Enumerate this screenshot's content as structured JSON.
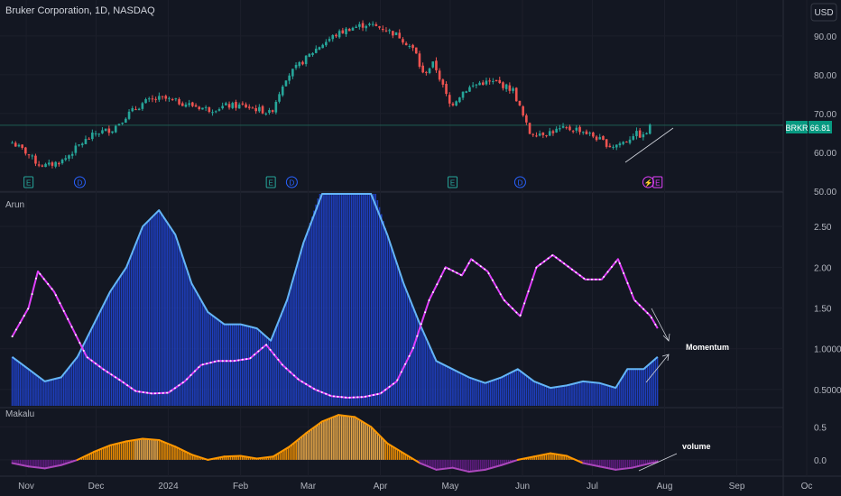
{
  "header": {
    "title": "Bruker Corporation, 1D, NASDAQ",
    "currency": "USD"
  },
  "price_label": {
    "symbol": "BRKR",
    "value": "66.81"
  },
  "colors": {
    "background": "#131722",
    "grid": "#1f2230",
    "up": "#26a69a",
    "down": "#ef5350",
    "arun_blue_line": "#64b5f6",
    "arun_blue_fill": "#1e3fbf",
    "arun_magenta": "#e040fb",
    "makalu_orange": "#ff9800",
    "makalu_purple": "#9c27b0",
    "text": "#b2b5be",
    "price_badge": "#089981"
  },
  "annotations": {
    "momentum": "Momentum",
    "volume": "volume"
  },
  "chart_data": [
    {
      "type": "candlestick",
      "title": "Bruker Corporation, 1D, NASDAQ",
      "y_ticks": [
        "90.00",
        "80.00",
        "70.00",
        "60.00",
        "50.00"
      ],
      "ylim": [
        50,
        96
      ],
      "x_ticks": [
        "Nov",
        "Dec",
        "2024",
        "Feb",
        "Mar",
        "Apr",
        "May",
        "Jun",
        "Jul",
        "Aug",
        "Sep",
        "Oc"
      ],
      "close_path": [
        [
          "2023-10-26",
          62.5
        ],
        [
          "2023-11-01",
          60
        ],
        [
          "2023-11-06",
          57
        ],
        [
          "2023-11-10",
          56.5
        ],
        [
          "2023-11-17",
          58
        ],
        [
          "2023-11-24",
          62
        ],
        [
          "2023-12-01",
          65
        ],
        [
          "2023-12-08",
          66
        ],
        [
          "2023-12-15",
          70
        ],
        [
          "2023-12-22",
          73
        ],
        [
          "2023-12-29",
          74
        ],
        [
          "2024-01-05",
          73
        ],
        [
          "2024-01-12",
          72
        ],
        [
          "2024-01-19",
          71
        ],
        [
          "2024-01-26",
          72
        ],
        [
          "2024-02-02",
          72
        ],
        [
          "2024-02-09",
          71
        ],
        [
          "2024-02-14",
          70
        ],
        [
          "2024-02-20",
          79
        ],
        [
          "2024-02-27",
          83
        ],
        [
          "2024-03-05",
          87
        ],
        [
          "2024-03-12",
          90
        ],
        [
          "2024-03-19",
          92
        ],
        [
          "2024-03-26",
          93
        ],
        [
          "2024-04-02",
          92
        ],
        [
          "2024-04-09",
          90
        ],
        [
          "2024-04-16",
          86
        ],
        [
          "2024-04-19",
          80
        ],
        [
          "2024-04-24",
          83
        ],
        [
          "2024-05-01",
          72
        ],
        [
          "2024-05-07",
          76
        ],
        [
          "2024-05-14",
          78
        ],
        [
          "2024-05-21",
          78
        ],
        [
          "2024-05-28",
          76
        ],
        [
          "2024-06-04",
          65
        ],
        [
          "2024-06-11",
          65
        ],
        [
          "2024-06-18",
          66
        ],
        [
          "2024-06-25",
          66
        ],
        [
          "2024-07-02",
          64
        ],
        [
          "2024-07-09",
          61.5
        ],
        [
          "2024-07-16",
          63
        ],
        [
          "2024-07-19",
          65
        ],
        [
          "2024-07-23",
          64
        ],
        [
          "2024-07-26",
          66.81
        ]
      ],
      "events": [
        {
          "date": "2023-11-02",
          "label": "E"
        },
        {
          "date": "2023-11-24",
          "label": "D"
        },
        {
          "date": "2024-02-14",
          "label": "E"
        },
        {
          "date": "2024-02-23",
          "label": "D"
        },
        {
          "date": "2024-05-02",
          "label": "E"
        },
        {
          "date": "2024-05-31",
          "label": "D"
        },
        {
          "date": "2024-07-25",
          "label": "⚡"
        },
        {
          "date": "2024-07-29",
          "label": "E"
        }
      ],
      "reference_line": 67
    },
    {
      "type": "line",
      "title": "Arun",
      "y_ticks": [
        "2.50",
        "2.00",
        "1.50",
        "1.0000",
        "0.5000"
      ],
      "ylim": [
        0.3,
        2.9
      ],
      "series": [
        {
          "color": "#64b5f6",
          "style": "line+histogram",
          "points": [
            [
              "2023-10-26",
              0.9
            ],
            [
              "2023-11-02",
              0.75
            ],
            [
              "2023-11-09",
              0.6
            ],
            [
              "2023-11-16",
              0.65
            ],
            [
              "2023-11-23",
              0.9
            ],
            [
              "2023-11-30",
              1.3
            ],
            [
              "2023-12-07",
              1.7
            ],
            [
              "2023-12-14",
              2.0
            ],
            [
              "2023-12-21",
              2.5
            ],
            [
              "2023-12-28",
              2.7
            ],
            [
              "2024-01-04",
              2.4
            ],
            [
              "2024-01-11",
              1.8
            ],
            [
              "2024-01-18",
              1.45
            ],
            [
              "2024-01-25",
              1.3
            ],
            [
              "2024-02-01",
              1.3
            ],
            [
              "2024-02-08",
              1.25
            ],
            [
              "2024-02-14",
              1.1
            ],
            [
              "2024-02-21",
              1.6
            ],
            [
              "2024-02-28",
              2.3
            ],
            [
              "2024-03-07",
              3.0
            ],
            [
              "2024-03-14",
              3.3
            ],
            [
              "2024-03-21",
              3.3
            ],
            [
              "2024-03-28",
              3.1
            ],
            [
              "2024-04-04",
              2.4
            ],
            [
              "2024-04-11",
              1.8
            ],
            [
              "2024-04-18",
              1.3
            ],
            [
              "2024-04-25",
              0.85
            ],
            [
              "2024-05-02",
              0.75
            ],
            [
              "2024-05-09",
              0.65
            ],
            [
              "2024-05-16",
              0.58
            ],
            [
              "2024-05-23",
              0.65
            ],
            [
              "2024-05-30",
              0.75
            ],
            [
              "2024-06-06",
              0.6
            ],
            [
              "2024-06-13",
              0.52
            ],
            [
              "2024-06-20",
              0.55
            ],
            [
              "2024-06-27",
              0.6
            ],
            [
              "2024-07-04",
              0.58
            ],
            [
              "2024-07-11",
              0.52
            ],
            [
              "2024-07-16",
              0.75
            ],
            [
              "2024-07-23",
              0.75
            ],
            [
              "2024-07-29",
              0.9
            ]
          ]
        },
        {
          "color": "#e040fb",
          "style": "line+dots",
          "points": [
            [
              "2023-10-26",
              1.15
            ],
            [
              "2023-11-02",
              1.5
            ],
            [
              "2023-11-06",
              1.95
            ],
            [
              "2023-11-13",
              1.7
            ],
            [
              "2023-11-20",
              1.3
            ],
            [
              "2023-11-27",
              0.9
            ],
            [
              "2023-12-04",
              0.75
            ],
            [
              "2023-12-11",
              0.62
            ],
            [
              "2023-12-18",
              0.48
            ],
            [
              "2023-12-25",
              0.45
            ],
            [
              "2024-01-01",
              0.46
            ],
            [
              "2024-01-08",
              0.6
            ],
            [
              "2024-01-15",
              0.8
            ],
            [
              "2024-01-22",
              0.85
            ],
            [
              "2024-01-29",
              0.85
            ],
            [
              "2024-02-05",
              0.88
            ],
            [
              "2024-02-12",
              1.05
            ],
            [
              "2024-02-19",
              0.8
            ],
            [
              "2024-02-26",
              0.62
            ],
            [
              "2024-03-04",
              0.5
            ],
            [
              "2024-03-11",
              0.42
            ],
            [
              "2024-03-18",
              0.4
            ],
            [
              "2024-03-25",
              0.41
            ],
            [
              "2024-04-01",
              0.45
            ],
            [
              "2024-04-08",
              0.6
            ],
            [
              "2024-04-15",
              1.0
            ],
            [
              "2024-04-22",
              1.6
            ],
            [
              "2024-04-29",
              2.0
            ],
            [
              "2024-05-06",
              1.9
            ],
            [
              "2024-05-10",
              2.1
            ],
            [
              "2024-05-17",
              1.95
            ],
            [
              "2024-05-24",
              1.6
            ],
            [
              "2024-05-31",
              1.4
            ],
            [
              "2024-06-07",
              2.0
            ],
            [
              "2024-06-14",
              2.15
            ],
            [
              "2024-06-21",
              2.0
            ],
            [
              "2024-06-28",
              1.85
            ],
            [
              "2024-07-05",
              1.85
            ],
            [
              "2024-07-12",
              2.1
            ],
            [
              "2024-07-19",
              1.6
            ],
            [
              "2024-07-26",
              1.4
            ],
            [
              "2024-07-29",
              1.25
            ]
          ]
        }
      ]
    },
    {
      "type": "area",
      "title": "Makalu",
      "y_ticks": [
        "0.5",
        "0.0"
      ],
      "ylim": [
        -0.22,
        0.75
      ],
      "series": [
        {
          "style": "histogram+line",
          "positive_color": "#ff9800",
          "negative_color": "#9c27b0",
          "points": [
            [
              "2023-10-26",
              -0.05
            ],
            [
              "2023-11-02",
              -0.1
            ],
            [
              "2023-11-09",
              -0.13
            ],
            [
              "2023-11-16",
              -0.08
            ],
            [
              "2023-11-23",
              0.0
            ],
            [
              "2023-11-30",
              0.12
            ],
            [
              "2023-12-07",
              0.22
            ],
            [
              "2023-12-14",
              0.28
            ],
            [
              "2023-12-21",
              0.32
            ],
            [
              "2023-12-28",
              0.3
            ],
            [
              "2024-01-04",
              0.2
            ],
            [
              "2024-01-11",
              0.08
            ],
            [
              "2024-01-18",
              0.0
            ],
            [
              "2024-01-25",
              0.05
            ],
            [
              "2024-02-01",
              0.06
            ],
            [
              "2024-02-08",
              0.02
            ],
            [
              "2024-02-15",
              0.05
            ],
            [
              "2024-02-22",
              0.2
            ],
            [
              "2024-02-29",
              0.4
            ],
            [
              "2024-03-07",
              0.58
            ],
            [
              "2024-03-14",
              0.68
            ],
            [
              "2024-03-21",
              0.65
            ],
            [
              "2024-03-28",
              0.5
            ],
            [
              "2024-04-04",
              0.25
            ],
            [
              "2024-04-11",
              0.1
            ],
            [
              "2024-04-18",
              -0.05
            ],
            [
              "2024-04-25",
              -0.15
            ],
            [
              "2024-05-02",
              -0.12
            ],
            [
              "2024-05-09",
              -0.18
            ],
            [
              "2024-05-16",
              -0.15
            ],
            [
              "2024-05-23",
              -0.08
            ],
            [
              "2024-05-30",
              0.0
            ],
            [
              "2024-06-06",
              0.05
            ],
            [
              "2024-06-13",
              0.1
            ],
            [
              "2024-06-20",
              0.06
            ],
            [
              "2024-06-27",
              -0.05
            ],
            [
              "2024-07-04",
              -0.1
            ],
            [
              "2024-07-11",
              -0.15
            ],
            [
              "2024-07-18",
              -0.12
            ],
            [
              "2024-07-25",
              -0.06
            ],
            [
              "2024-07-29",
              -0.03
            ]
          ]
        }
      ]
    }
  ]
}
